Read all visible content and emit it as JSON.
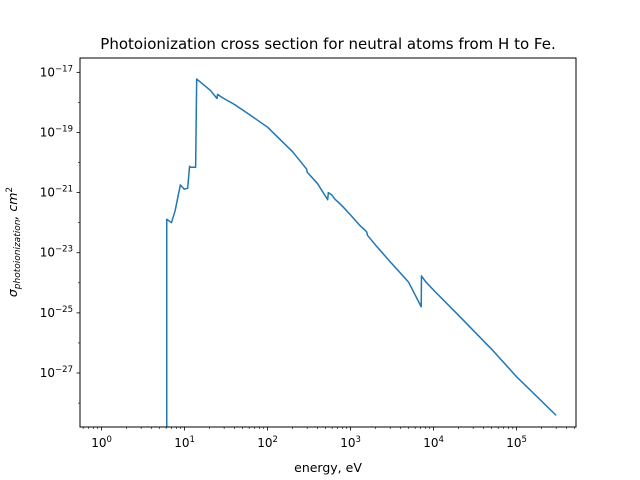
{
  "chart_data": {
    "type": "line",
    "title": "Photoionization cross section for neutral atoms from H to Fe.",
    "xlabel": "energy, eV",
    "ylabel": "σphotoionization, cm2",
    "xscale": "log",
    "yscale": "log",
    "xlim": [
      0.55,
      520000
    ],
    "ylim": [
      1.6e-29,
      3e-17
    ],
    "grid": false,
    "color": "#1f77b4",
    "x_ticks": [
      {
        "value": 1,
        "base": "10",
        "exp": "0"
      },
      {
        "value": 10,
        "base": "10",
        "exp": "1"
      },
      {
        "value": 100,
        "base": "10",
        "exp": "2"
      },
      {
        "value": 1000,
        "base": "10",
        "exp": "3"
      },
      {
        "value": 10000,
        "base": "10",
        "exp": "4"
      },
      {
        "value": 100000,
        "base": "10",
        "exp": "5"
      }
    ],
    "y_ticks": [
      {
        "value": 1e-17,
        "base": "10",
        "exp": "−17"
      },
      {
        "value": 1e-19,
        "base": "10",
        "exp": "−19"
      },
      {
        "value": 1e-21,
        "base": "10",
        "exp": "−21"
      },
      {
        "value": 1e-23,
        "base": "10",
        "exp": "−23"
      },
      {
        "value": 1e-25,
        "base": "10",
        "exp": "−25"
      },
      {
        "value": 1e-27,
        "base": "10",
        "exp": "−27"
      }
    ],
    "series": [
      {
        "x": [
          6.1,
          6.1,
          6.95,
          7.7,
          8.9,
          9.9,
          10.9,
          11.5,
          11.6,
          13.3,
          13.6,
          14.0,
          20.5,
          24.6,
          25.0,
          29.0,
          40.0,
          60.0,
          100.0,
          200.0,
          296.0,
          300.0,
          400.0,
          530.0,
          540.0,
          590.0,
          650.0,
          700.0,
          800.0,
          1000.0,
          1300.0,
          1560.0,
          1600.0,
          2000.0,
          3000.0,
          5000.0,
          7100.0,
          7150.0,
          8000.0,
          10000.0,
          20000.0,
          50000.0,
          100000.0,
          300000.0
        ],
        "y": [
          1e-29,
          1.3e-22,
          1e-22,
          2.5e-22,
          1.8e-21,
          1.3e-21,
          1.4e-21,
          7.5e-21,
          7e-21,
          7e-21,
          7e-21,
          6e-18,
          2.5e-18,
          1.35e-18,
          1.85e-18,
          1.4e-18,
          8.5e-19,
          4e-19,
          1.5e-19,
          2.3e-20,
          6e-21,
          4.8e-21,
          2e-21,
          5.8e-22,
          1e-21,
          8.5e-22,
          6e-22,
          5e-22,
          3.5e-22,
          1.8e-22,
          8e-23,
          5e-23,
          3.8e-23,
          1.8e-23,
          5e-24,
          1.05e-24,
          1.6e-25,
          1.7e-24,
          1.1e-24,
          5.7e-25,
          8.3e-26,
          6.2e-27,
          7.5e-28,
          3.9e-29
        ]
      }
    ]
  }
}
